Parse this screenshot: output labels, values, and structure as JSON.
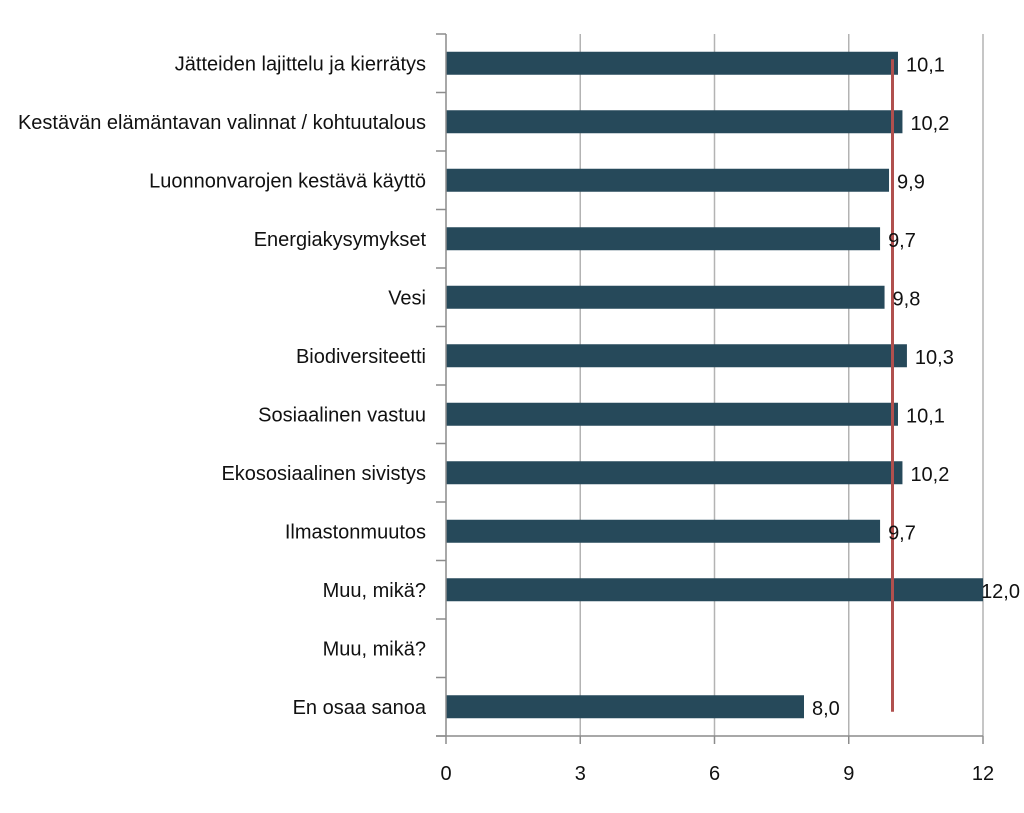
{
  "chart_data": {
    "type": "bar",
    "orientation": "horizontal",
    "categories": [
      "Jätteiden lajittelu ja kierrätys",
      "Kestävän elämäntavan valinnat / kohtuutalous",
      "Luonnonvarojen kestävä käyttö",
      "Energiakysymykset",
      "Vesi",
      "Biodiversiteetti",
      "Sosiaalinen vastuu",
      "Ekososiaalinen sivistys",
      "Ilmastonmuutos",
      "Muu, mikä?",
      "Muu, mikä?",
      "En osaa sanoa"
    ],
    "values": [
      10.1,
      10.2,
      9.9,
      9.7,
      9.8,
      10.3,
      10.1,
      10.2,
      9.7,
      12.0,
      null,
      8.0
    ],
    "value_labels": [
      "10,1",
      "10,2",
      "9,9",
      "9,7",
      "9,8",
      "10,3",
      "10,1",
      "10,2",
      "9,7",
      "12,0",
      "",
      "8,0"
    ],
    "xlim": [
      0,
      12
    ],
    "xticks": [
      0,
      3,
      6,
      9,
      12
    ],
    "xtick_labels": [
      "0",
      "3",
      "6",
      "9",
      "12"
    ],
    "grid": true,
    "reference_line": {
      "value": 10,
      "orientation": "vertical"
    },
    "title": "",
    "xlabel": "",
    "ylabel": "",
    "colors": {
      "bar": "#26495a",
      "reference_line": "#b0504e",
      "grid": "#b3b3b3",
      "axis": "#8c8c8c"
    }
  }
}
